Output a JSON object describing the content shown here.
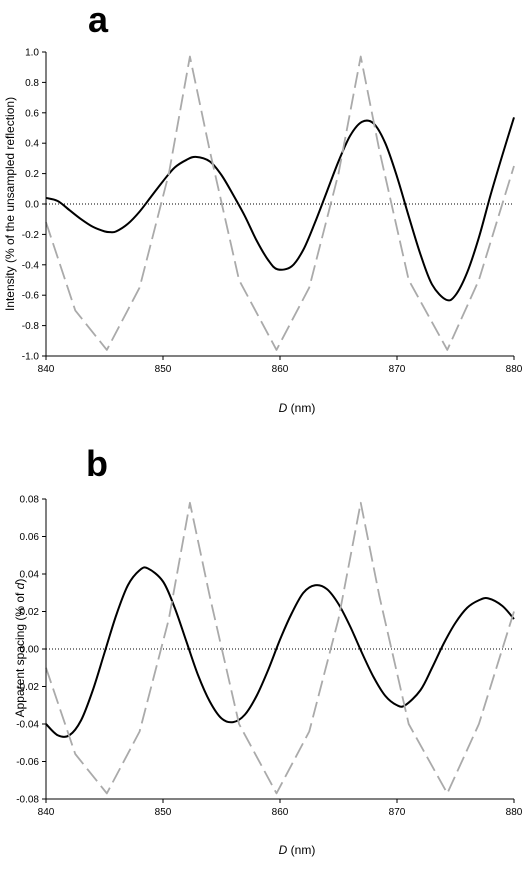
{
  "chart_data": [
    {
      "type": "line",
      "panel_label": "a",
      "xlabel_italic": "D",
      "xlabel_unit": " (nm)",
      "ylabel": "Intensity (% of the unsampled reflection)",
      "xlim": [
        840,
        880
      ],
      "ylim": [
        -1.0,
        1.0
      ],
      "xticks": [
        "840",
        "850",
        "860",
        "870",
        "880"
      ],
      "yticks": [
        "1.0",
        "0.8",
        "0.6",
        "0.4",
        "0.2",
        "0.0",
        "-0.2",
        "-0.4",
        "-0.6",
        "-0.8",
        "-1.0"
      ],
      "grid": false,
      "zero_line": "dotted",
      "series": [
        {
          "style": "solid",
          "color": "#000000",
          "x": [
            840,
            841,
            842,
            843,
            844,
            845,
            845.5,
            846,
            847,
            848,
            849,
            850,
            851,
            852,
            852.8,
            854,
            855,
            856,
            857,
            858,
            859,
            859.8,
            861,
            862,
            863,
            864,
            865,
            866,
            867,
            868,
            869,
            870,
            871,
            872,
            873,
            874.2,
            875,
            876,
            877,
            878,
            879,
            880
          ],
          "y": [
            0.04,
            0.02,
            -0.04,
            -0.1,
            -0.15,
            -0.18,
            -0.185,
            -0.18,
            -0.13,
            -0.05,
            0.05,
            0.15,
            0.24,
            0.29,
            0.31,
            0.28,
            0.19,
            0.06,
            -0.08,
            -0.24,
            -0.37,
            -0.43,
            -0.41,
            -0.3,
            -0.12,
            0.08,
            0.28,
            0.45,
            0.54,
            0.53,
            0.4,
            0.18,
            -0.08,
            -0.33,
            -0.53,
            -0.63,
            -0.6,
            -0.45,
            -0.22,
            0.06,
            0.32,
            0.57
          ]
        },
        {
          "style": "dashed",
          "color": "#aaaaaa",
          "x": [
            840,
            842.5,
            845.2,
            848,
            850.5,
            852.3,
            854,
            856.5,
            859.7,
            862.5,
            865,
            866.9,
            868.5,
            871,
            874.3,
            877,
            880
          ],
          "y": [
            -0.12,
            -0.7,
            -0.96,
            -0.55,
            0.2,
            0.97,
            0.35,
            -0.5,
            -0.96,
            -0.55,
            0.2,
            0.97,
            0.35,
            -0.5,
            -0.96,
            -0.5,
            0.25
          ]
        }
      ]
    },
    {
      "type": "line",
      "panel_label": "b",
      "xlabel_italic": "D",
      "xlabel_unit": " (nm)",
      "ylabel_prefix": "Apparent spacing (% of ",
      "ylabel_italic": "d",
      "ylabel_suffix": ")",
      "xlim": [
        840,
        880
      ],
      "ylim": [
        -0.08,
        0.08
      ],
      "xticks": [
        "840",
        "850",
        "860",
        "870",
        "880"
      ],
      "yticks": [
        "0.08",
        "0.06",
        "0.04",
        "0.02",
        "0.00",
        "-0.02",
        "-0.04",
        "-0.06",
        "-0.08"
      ],
      "grid": false,
      "zero_line": "dotted",
      "series": [
        {
          "style": "solid",
          "color": "#000000",
          "x": [
            840,
            841,
            842,
            843,
            844,
            845,
            846,
            847,
            848,
            848.7,
            850,
            851,
            852,
            853,
            854,
            855,
            856,
            857,
            858,
            859,
            860,
            861,
            862,
            863,
            864,
            865,
            866,
            867,
            868,
            869,
            870,
            870.7,
            872,
            873,
            874,
            875,
            876,
            877,
            877.8,
            879,
            880
          ],
          "y": [
            -0.04,
            -0.046,
            -0.046,
            -0.038,
            -0.022,
            -0.002,
            0.018,
            0.034,
            0.042,
            0.043,
            0.036,
            0.022,
            0.004,
            -0.014,
            -0.028,
            -0.037,
            -0.039,
            -0.035,
            -0.025,
            -0.011,
            0.005,
            0.019,
            0.03,
            0.034,
            0.032,
            0.024,
            0.012,
            -0.002,
            -0.015,
            -0.025,
            -0.03,
            -0.03,
            -0.022,
            -0.01,
            0.003,
            0.014,
            0.022,
            0.026,
            0.027,
            0.023,
            0.016
          ]
        },
        {
          "style": "dashed",
          "color": "#aaaaaa",
          "x": [
            840,
            842.5,
            845.2,
            848,
            850.5,
            852.3,
            854,
            856.5,
            859.7,
            862.5,
            865,
            866.9,
            868.5,
            871,
            874.3,
            877,
            880
          ],
          "y": [
            -0.01,
            -0.056,
            -0.077,
            -0.044,
            0.016,
            0.078,
            0.028,
            -0.04,
            -0.077,
            -0.044,
            0.016,
            0.078,
            0.028,
            -0.04,
            -0.077,
            -0.04,
            0.02
          ]
        }
      ]
    }
  ]
}
